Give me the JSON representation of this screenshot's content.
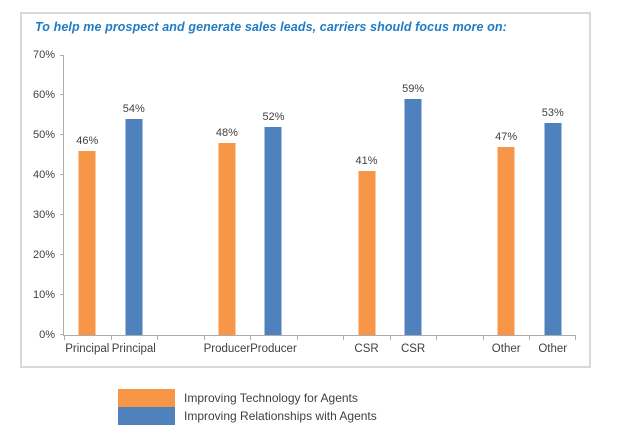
{
  "chart": {
    "title": "To help me prospect and generate sales leads, carriers should focus more on:",
    "title_color": "#1f7cc4",
    "frame_border_color": "#d9d9d9",
    "axis_color": "#acacac",
    "text_color": "#404040"
  },
  "chart_data": {
    "type": "bar",
    "categories": [
      "Principal",
      "Producer",
      "CSR",
      "Other"
    ],
    "series": [
      {
        "name": "Improving Technology for Agents",
        "color": "#F79646",
        "values": [
          46,
          48,
          41,
          47
        ]
      },
      {
        "name": "Improving Relationships with Agents",
        "color": "#4F81BD",
        "values": [
          54,
          52,
          59,
          53
        ]
      }
    ],
    "value_suffix": "%",
    "xlabel": "",
    "ylabel": "",
    "ylim": [
      0,
      70
    ],
    "ytick_labels": [
      "0%",
      "10%",
      "20%",
      "30%",
      "40%",
      "50%",
      "60%",
      "70%"
    ],
    "grid": false,
    "bar_labels_shown": true,
    "category_label_per_bar": true,
    "group_spacer_cells": 1,
    "legend_position": "bottom-left"
  }
}
